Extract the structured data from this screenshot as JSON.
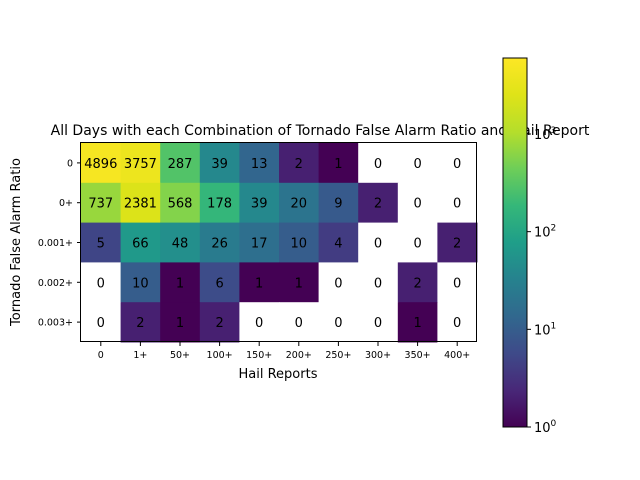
{
  "chart_data": {
    "type": "heatmap",
    "title": "All Days with each Combination of Tornado False Alarm Ratio and Hail Report",
    "xlabel": "Hail Reports",
    "ylabel": "Tornado False Alarm Ratio",
    "x_tick_labels": [
      "0",
      "1+",
      "50+",
      "100+",
      "150+",
      "200+",
      "250+",
      "300+",
      "350+",
      "400+"
    ],
    "y_tick_labels": [
      "0",
      "0+",
      "0.001+",
      "0.002+",
      "0.003+"
    ],
    "values": [
      [
        4896,
        3757,
        287,
        39,
        13,
        2,
        1,
        0,
        0,
        0
      ],
      [
        737,
        2381,
        568,
        178,
        39,
        20,
        9,
        2,
        0,
        0
      ],
      [
        5,
        66,
        48,
        26,
        17,
        10,
        4,
        0,
        0,
        2
      ],
      [
        0,
        10,
        1,
        6,
        1,
        1,
        0,
        0,
        2,
        0
      ],
      [
        0,
        2,
        1,
        2,
        0,
        0,
        0,
        0,
        1,
        0
      ]
    ],
    "colorbar": {
      "scale": "log",
      "colormap": "viridis",
      "range": [
        1,
        6000
      ],
      "ticks": [
        {
          "value": 1,
          "base": "10",
          "exp": "0"
        },
        {
          "value": 10,
          "base": "10",
          "exp": "1"
        },
        {
          "value": 100,
          "base": "10",
          "exp": "2"
        },
        {
          "value": 1000,
          "base": "10",
          "exp": "3"
        }
      ]
    },
    "zero_color": "#ffffff"
  }
}
